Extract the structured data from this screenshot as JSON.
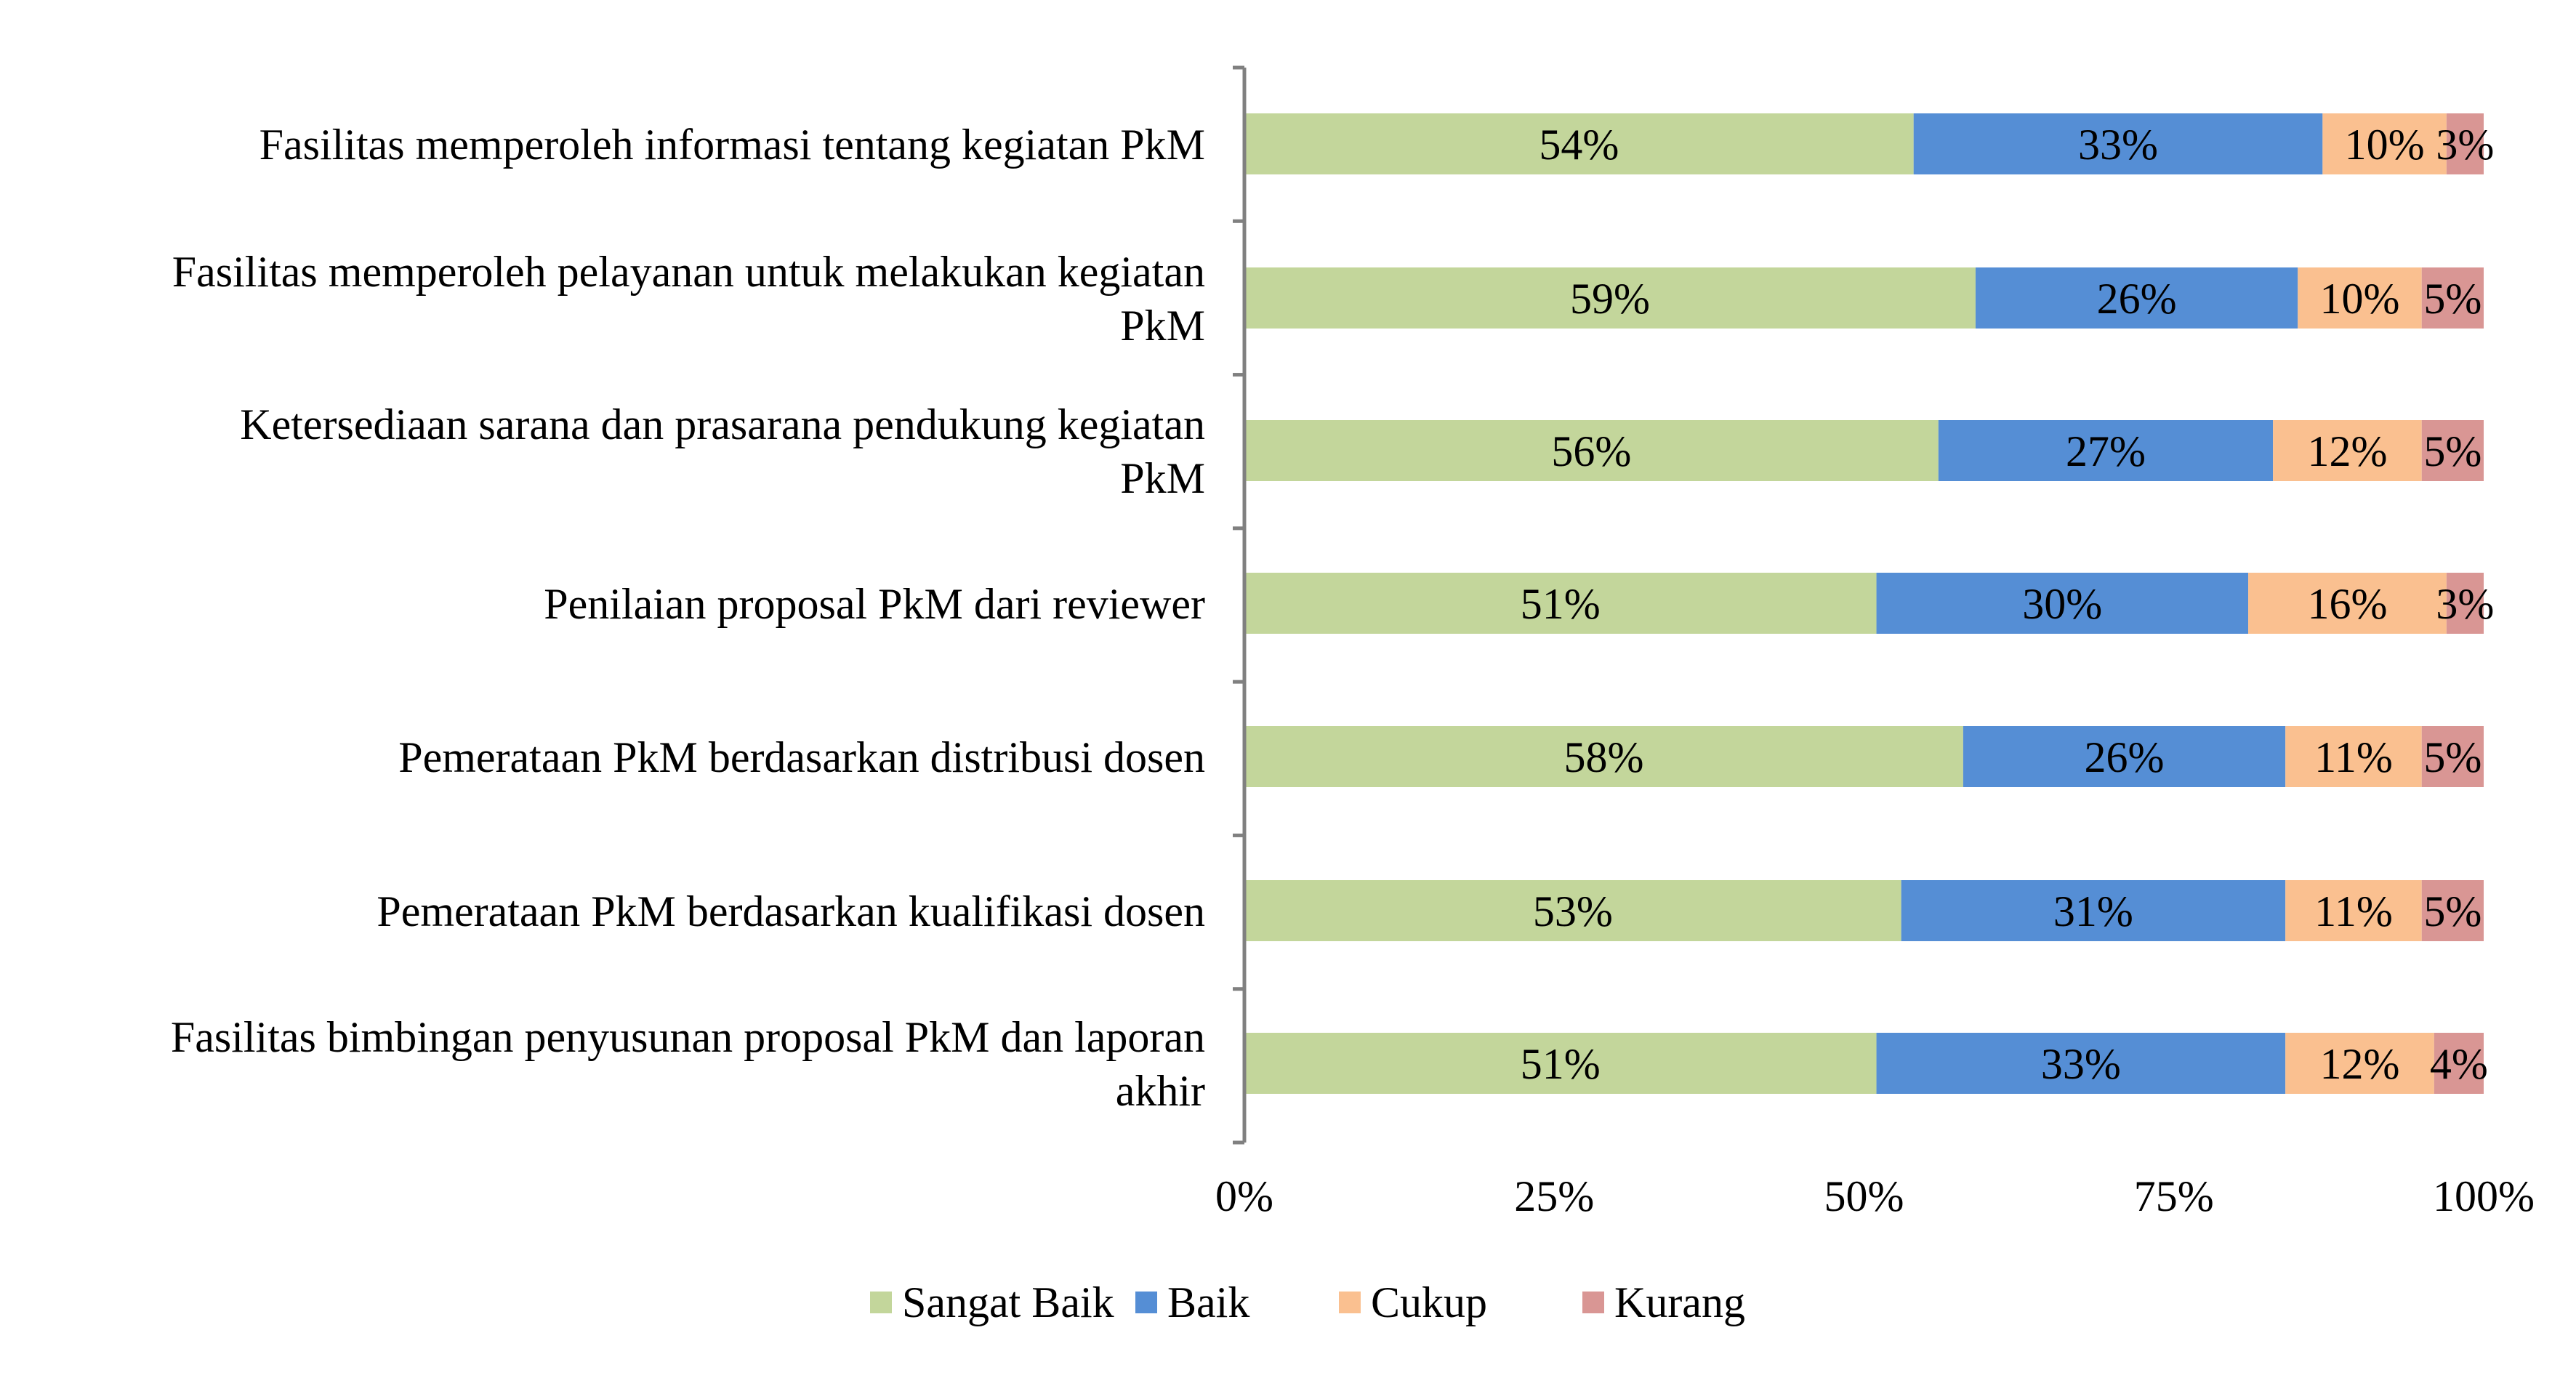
{
  "chart_data": {
    "type": "bar",
    "orientation": "horizontal",
    "stacked": "percent",
    "categories": [
      "Fasilitas memperoleh informasi tentang kegiatan PkM",
      "Fasilitas memperoleh pelayanan untuk melakukan kegiatan PkM",
      "Ketersediaan sarana dan prasarana pendukung kegiatan PkM",
      "Penilaian proposal PkM dari reviewer",
      "Pemerataan PkM berdasarkan distribusi dosen",
      "Pemerataan PkM berdasarkan kualifikasi dosen",
      "Fasilitas bimbingan penyusunan proposal PkM dan laporan akhir"
    ],
    "category_lines": [
      [
        "Fasilitas memperoleh informasi tentang kegiatan PkM"
      ],
      [
        "Fasilitas memperoleh pelayanan untuk melakukan kegiatan",
        "PkM"
      ],
      [
        "Ketersediaan sarana dan prasarana pendukung kegiatan",
        "PkM"
      ],
      [
        "Penilaian proposal PkM dari reviewer"
      ],
      [
        "Pemerataan PkM berdasarkan distribusi dosen"
      ],
      [
        "Pemerataan PkM berdasarkan kualifikasi dosen"
      ],
      [
        "Fasilitas bimbingan penyusunan proposal PkM dan laporan",
        "akhir"
      ]
    ],
    "series": [
      {
        "name": "Sangat Baik",
        "color": "#c3d69b",
        "values": [
          54,
          59,
          56,
          51,
          58,
          53,
          51
        ]
      },
      {
        "name": "Baik",
        "color": "#558ed5",
        "values": [
          33,
          26,
          27,
          30,
          26,
          31,
          33
        ]
      },
      {
        "name": "Cukup",
        "color": "#fac090",
        "values": [
          10,
          10,
          12,
          16,
          11,
          11,
          12
        ]
      },
      {
        "name": "Kurang",
        "color": "#d99694",
        "values": [
          3,
          5,
          5,
          3,
          5,
          5,
          4
        ]
      }
    ],
    "data_labels": [
      [
        "54%",
        "33%",
        "10%",
        "3%"
      ],
      [
        "59%",
        "26%",
        "10%",
        "5%"
      ],
      [
        "56%",
        "27%",
        "12%",
        "5%"
      ],
      [
        "51%",
        "30%",
        "16%",
        "3%"
      ],
      [
        "58%",
        "26%",
        "11%",
        "5%"
      ],
      [
        "53%",
        "31%",
        "11%",
        "5%"
      ],
      [
        "51%",
        "33%",
        "12%",
        "4%"
      ]
    ],
    "xlim": [
      0,
      100
    ],
    "xticks": [
      0,
      25,
      50,
      75,
      100
    ],
    "xtick_labels": [
      "0%",
      "25%",
      "50%",
      "75%",
      "100%"
    ],
    "grid": false,
    "legend_position": "bottom",
    "axis_color": "#808080"
  }
}
